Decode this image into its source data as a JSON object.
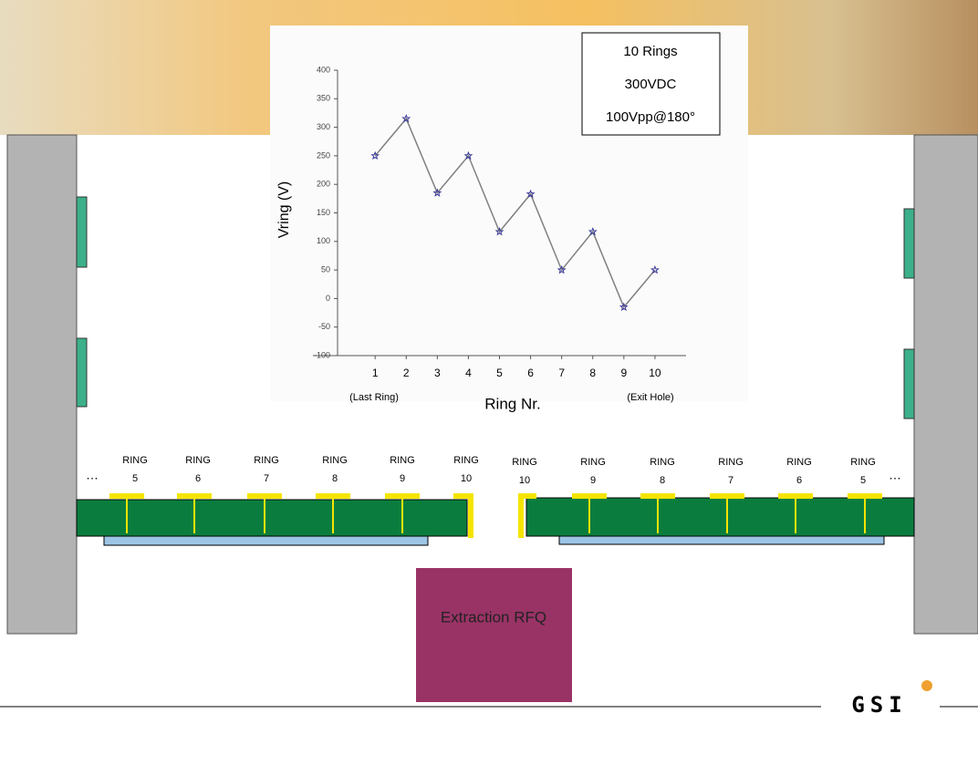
{
  "chart_data": {
    "type": "line",
    "x": [
      1,
      2,
      3,
      4,
      5,
      6,
      7,
      8,
      9,
      10
    ],
    "xticks": [
      1,
      2,
      3,
      4,
      5,
      6,
      7,
      8,
      9,
      10
    ],
    "xlim": [
      -1,
      11
    ],
    "values": [
      250,
      315,
      185,
      250,
      117,
      183,
      50,
      117,
      -15,
      50
    ],
    "color": "#808080",
    "marker_color": "#3a3a9a",
    "ylim": [
      -100,
      400
    ],
    "yticks": [
      -100,
      -50,
      0,
      50,
      100,
      150,
      200,
      250,
      300,
      350,
      400
    ],
    "xlabel": "Ring Nr.",
    "ylabel": "Vring (V)",
    "annotations": [
      "(Last Ring)",
      "(Exit Hole)"
    ],
    "annotation_box": [
      "10 Rings",
      "300VDC",
      "100Vpp@180°"
    ]
  },
  "rings_left": [
    {
      "label": "RING",
      "number": "5"
    },
    {
      "label": "RING",
      "number": "6"
    },
    {
      "label": "RING",
      "number": "7"
    },
    {
      "label": "RING",
      "number": "8"
    },
    {
      "label": "RING",
      "number": "9"
    },
    {
      "label": "RING",
      "number": "10"
    }
  ],
  "rings_right": [
    {
      "label": "RING",
      "number": "10"
    },
    {
      "label": "RING",
      "number": "9"
    },
    {
      "label": "RING",
      "number": "8"
    },
    {
      "label": "RING",
      "number": "7"
    },
    {
      "label": "RING",
      "number": "6"
    },
    {
      "label": "RING",
      "number": "5"
    }
  ],
  "ellipsis": [
    "…",
    "…"
  ],
  "rfq_label": "Extraction RFQ",
  "logo": "GSI"
}
